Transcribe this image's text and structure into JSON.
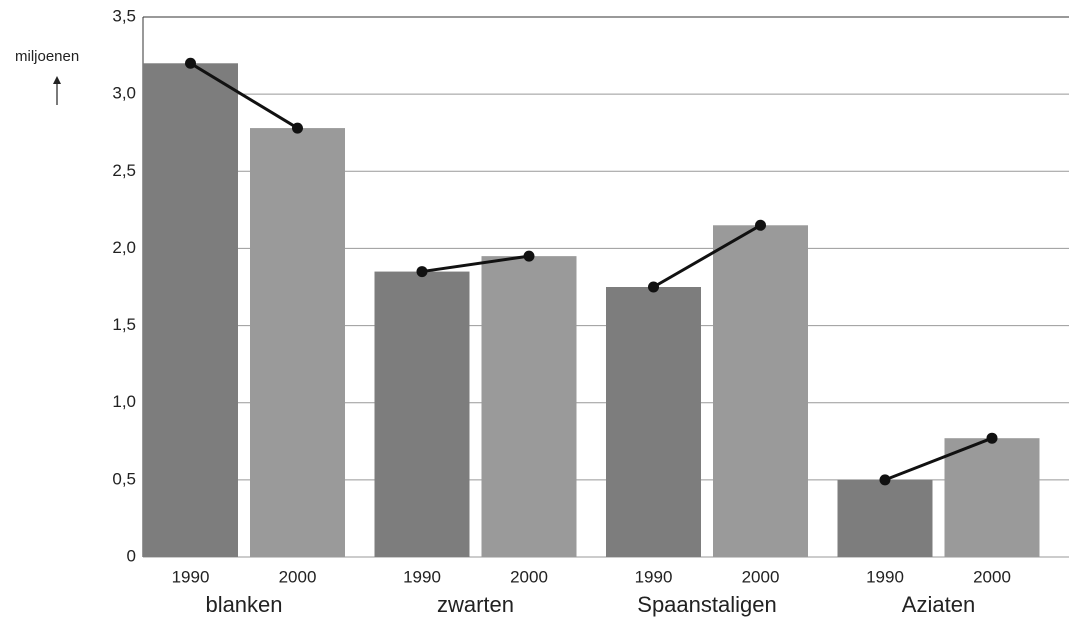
{
  "chart_data": {
    "type": "bar",
    "y_label": "miljoenen",
    "categories": [
      "blanken",
      "zwarten",
      "Spaanstaligen",
      "Aziaten"
    ],
    "series": [
      {
        "name": "1990",
        "color": "#7d7d7d",
        "values": [
          3.2,
          1.85,
          1.75,
          0.5
        ]
      },
      {
        "name": "2000",
        "color": "#9a9a9a",
        "values": [
          2.78,
          1.95,
          2.15,
          0.77
        ]
      }
    ],
    "ylim": [
      0,
      3.5
    ],
    "yticks": [
      0,
      {
        "value": 0.5,
        "label": "0,5"
      },
      {
        "value": 1,
        "label": "1,0"
      },
      {
        "value": 1.5,
        "label": "1,5"
      },
      {
        "value": 2,
        "label": "2,0"
      },
      {
        "value": 2.5,
        "label": "2,5"
      },
      {
        "value": 3,
        "label": "3,0"
      },
      {
        "value": 3.5,
        "label": "3,5"
      }
    ],
    "grid": true,
    "connect_color": "#111111"
  }
}
